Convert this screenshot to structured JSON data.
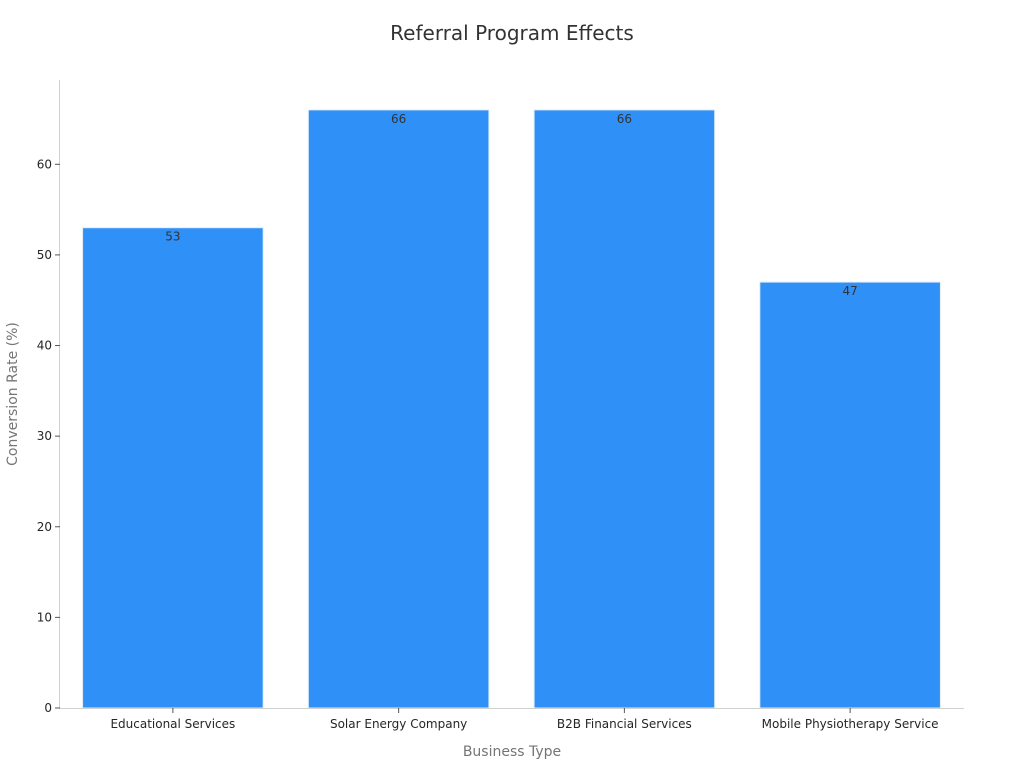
{
  "chart_data": {
    "type": "bar",
    "title": "Referral Program Effects",
    "xlabel": "Business Type",
    "ylabel": "Conversion Rate (%)",
    "categories": [
      "Educational Services",
      "Solar Energy Company",
      "B2B Financial Services",
      "Mobile Physiotherapy Service"
    ],
    "values": [
      53,
      66,
      66,
      47
    ],
    "data_labels": [
      "53",
      "66",
      "66",
      "47"
    ],
    "ylim": [
      0,
      69.3
    ],
    "yticks": [
      0,
      10,
      20,
      30,
      40,
      50,
      60
    ],
    "ytick_labels": [
      "0",
      "10",
      "20",
      "30",
      "40",
      "50",
      "60"
    ],
    "bar_color": "#2f91f8",
    "grid": false,
    "legend": "none"
  }
}
